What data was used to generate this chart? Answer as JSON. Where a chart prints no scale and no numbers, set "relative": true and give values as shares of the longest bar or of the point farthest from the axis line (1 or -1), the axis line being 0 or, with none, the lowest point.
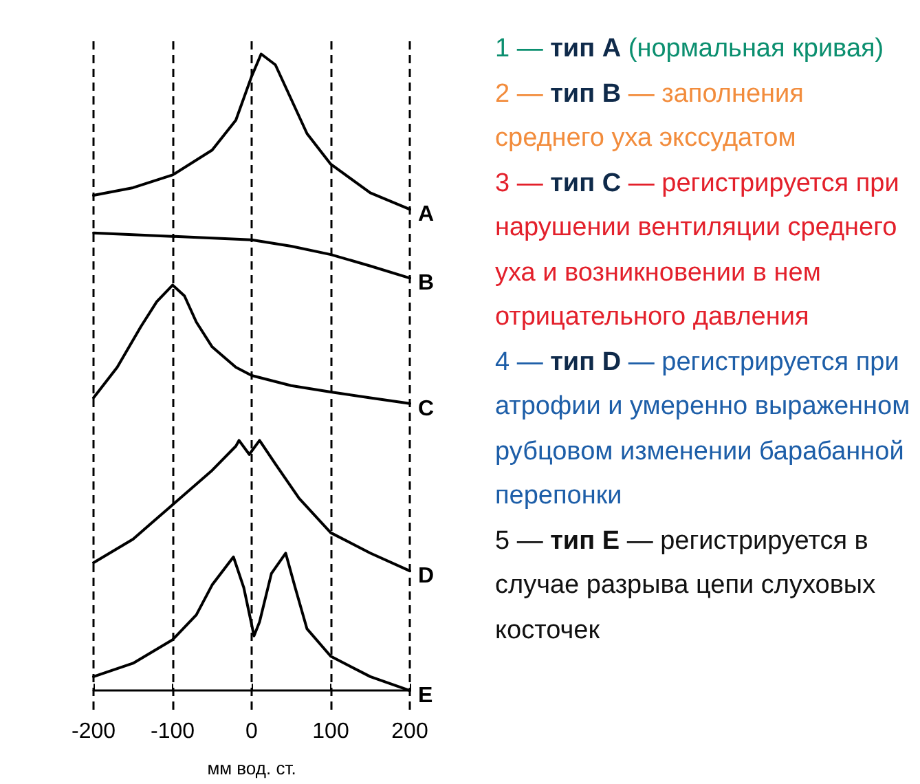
{
  "chart_data": {
    "type": "line",
    "relative": true,
    "xlabel": "мм вод. ст.",
    "xlim": [
      -200,
      200
    ],
    "xticks": [
      -200,
      -100,
      0,
      100,
      200
    ],
    "grid": "x",
    "legend": false,
    "marker": "none",
    "line_style": "solid",
    "series": [
      {
        "name": "A",
        "color": "#000000",
        "x": [
          -200,
          -150,
          -100,
          -50,
          -20,
          0,
          12,
          30,
          50,
          70,
          100,
          150,
          200
        ],
        "values": [
          0.778,
          0.79,
          0.81,
          0.849,
          0.896,
          0.965,
          1,
          0.983,
          0.929,
          0.875,
          0.827,
          0.782,
          0.756
        ]
      },
      {
        "name": "B",
        "color": "#000000",
        "x": [
          -200,
          0,
          50,
          100,
          150,
          200
        ],
        "values": [
          0.719,
          0.708,
          0.698,
          0.685,
          0.667,
          0.648
        ]
      },
      {
        "name": "C",
        "color": "#000000",
        "x": [
          -200,
          -170,
          -140,
          -120,
          -100,
          -85,
          -70,
          -50,
          -20,
          0,
          50,
          100,
          150,
          200
        ],
        "values": [
          0.46,
          0.508,
          0.572,
          0.611,
          0.637,
          0.62,
          0.579,
          0.54,
          0.508,
          0.495,
          0.479,
          0.469,
          0.46,
          0.451
        ]
      },
      {
        "name": "D",
        "color": "#000000",
        "x": [
          -200,
          -150,
          -100,
          -50,
          -20,
          -16,
          -3,
          10,
          30,
          60,
          100,
          150,
          200
        ],
        "values": [
          0.201,
          0.238,
          0.292,
          0.346,
          0.384,
          0.393,
          0.371,
          0.393,
          0.356,
          0.302,
          0.248,
          0.216,
          0.188
        ]
      },
      {
        "name": "E",
        "color": "#000000",
        "x": [
          -200,
          -150,
          -100,
          -70,
          -50,
          -23,
          -10,
          3,
          10,
          25,
          43,
          55,
          70,
          100,
          150,
          200
        ],
        "values": [
          0.022,
          0.043,
          0.08,
          0.119,
          0.166,
          0.21,
          0.162,
          0.086,
          0.108,
          0.184,
          0.216,
          0.162,
          0.097,
          0.054,
          0.022,
          0
        ]
      }
    ],
    "annotations": [
      "1 — тип A (нормальная кривая)",
      "2 — тип B — заполнения среднего уха экссудатом",
      "3 — тип C — регистрируется при нарушении вентиляции среднего уха и возникновении в нем отрицательного давления",
      "4 — тип D — регистрируется при атрофии и умеренно выраженном рубцовом изменении барабанной перепонки",
      "5 — тип E — регистрируется в случае разрыва цепи слуховых косточек"
    ]
  }
}
